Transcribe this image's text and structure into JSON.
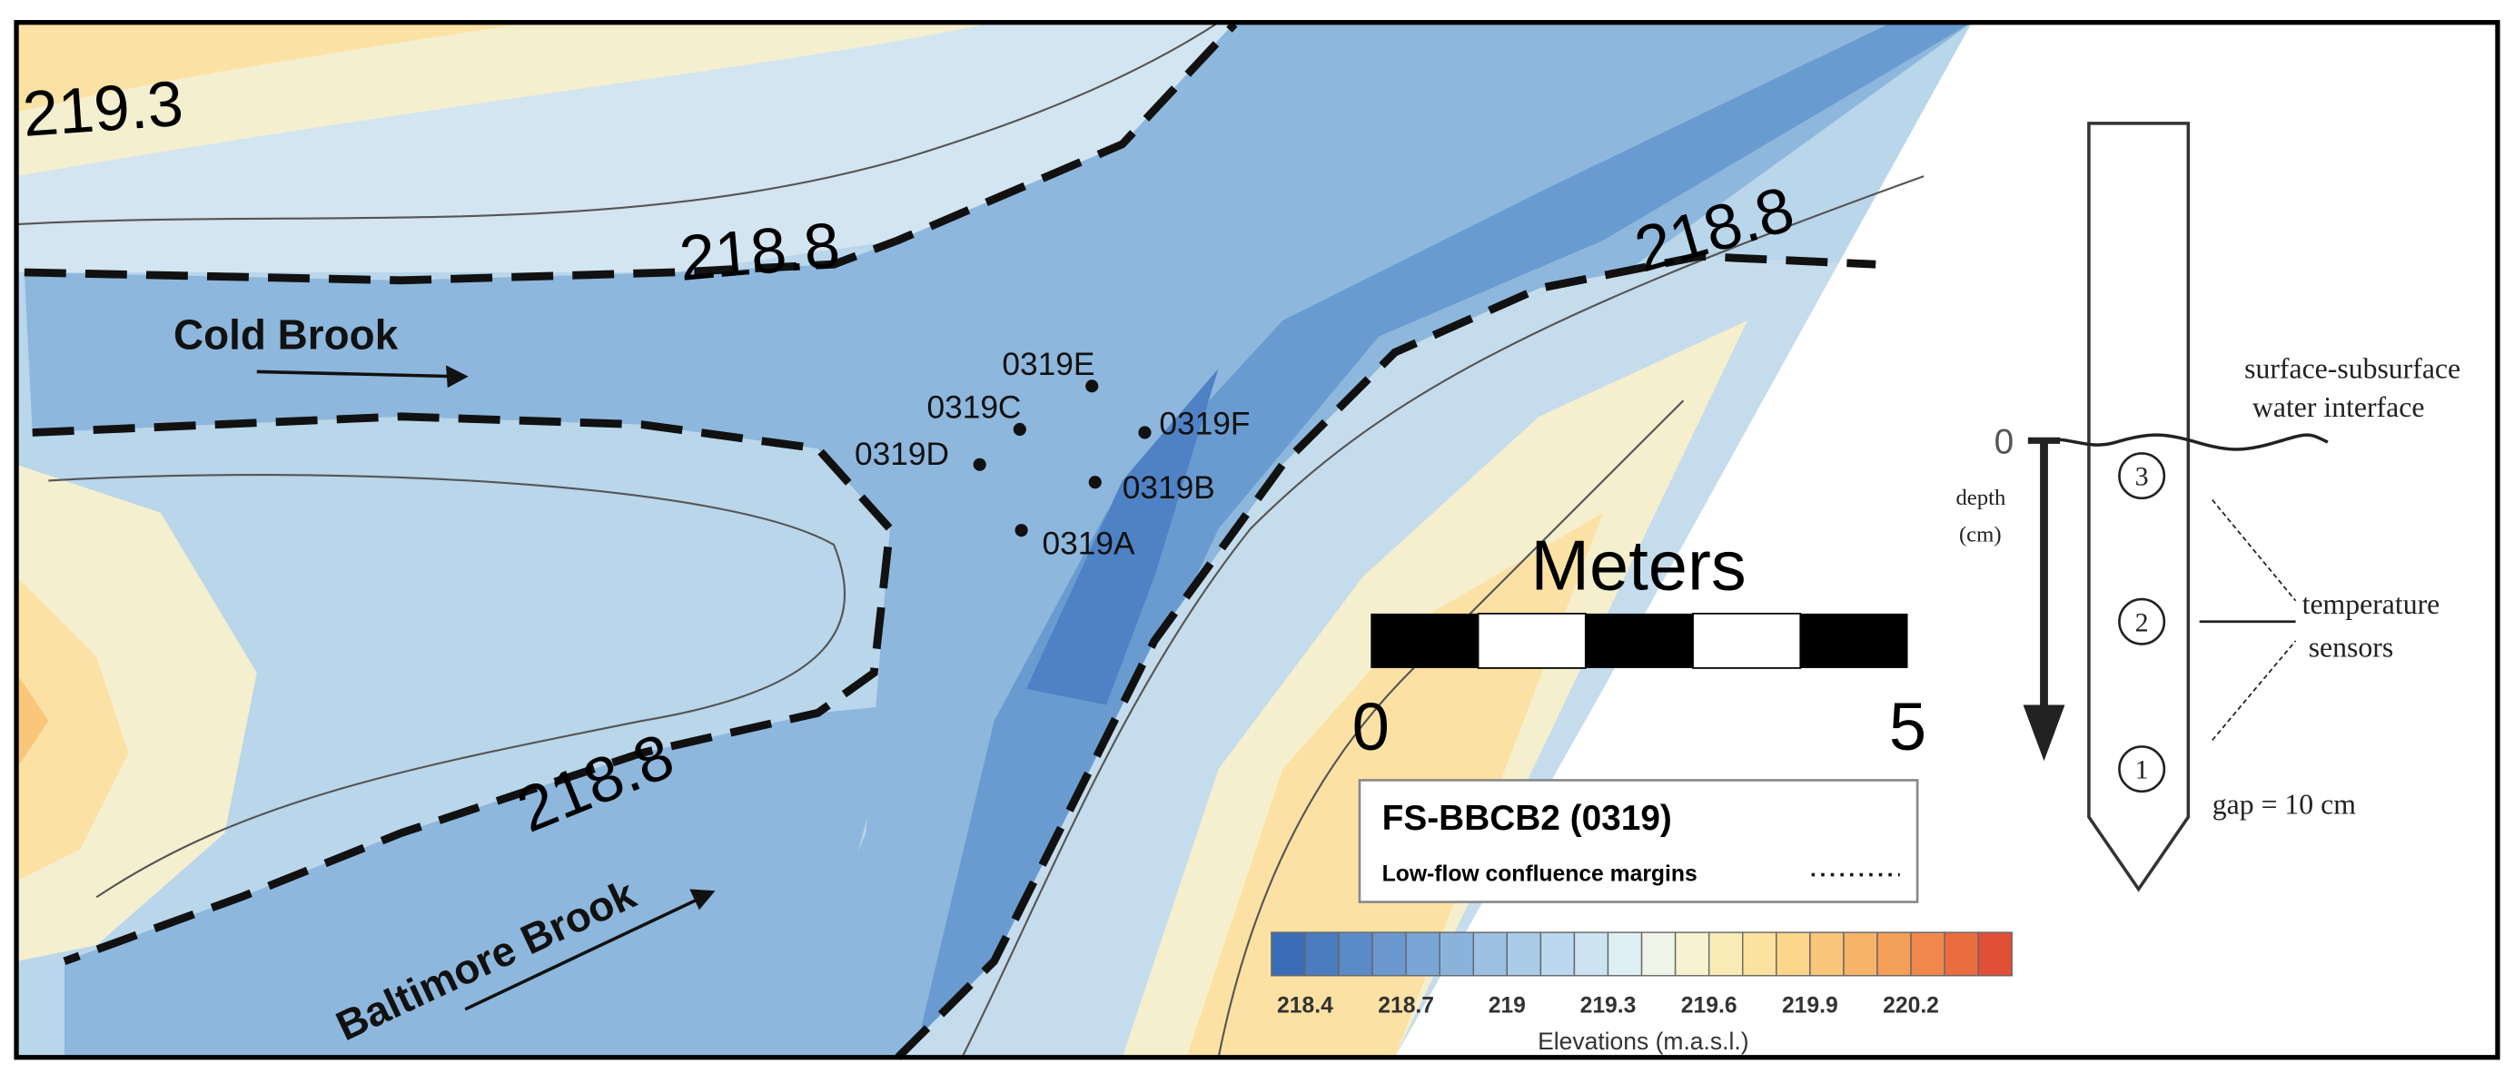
{
  "map": {
    "contour_labels": [
      219.3,
      218.8,
      218.8,
      218.8
    ],
    "streams": [
      "Cold Brook",
      "Baltimore Brook"
    ],
    "sites": [
      "0319E",
      "0319C",
      "0319F",
      "0319D",
      "0319B",
      "0319A"
    ],
    "scale_bar": {
      "title": "Meters",
      "labels": [
        0,
        5
      ]
    },
    "legend": {
      "title": "FS-BBCB2 (0319)",
      "entry": "Low-flow confluence margins"
    },
    "colorbar": {
      "colors": [
        "#3b6db6",
        "#4a7cbf",
        "#5a8ac8",
        "#6a98cf",
        "#7aa6d6",
        "#8ab3dc",
        "#9bc0e2",
        "#abcce8",
        "#bcd8ee",
        "#cde3f2",
        "#def0f4",
        "#eef5e8",
        "#f7f2cf",
        "#f9ebb6",
        "#fbe2a0",
        "#fbd68b",
        "#f9c67a",
        "#f7b469",
        "#f49f5a",
        "#f0884c",
        "#ea6d40",
        "#e24f37"
      ],
      "ticks": [
        218.4,
        218.7,
        219,
        219.3,
        219.6,
        219.9,
        220.2
      ],
      "label": "Elevations (m.a.s.l.)"
    }
  },
  "diagram": {
    "interface_label": [
      "surface-subsurface",
      "water interface"
    ],
    "zero": 0,
    "depth_label": [
      "depth",
      "(cm)"
    ],
    "sensors": [
      "3",
      "2",
      "1"
    ],
    "sensor_label": [
      "temperature",
      "sensors"
    ],
    "gap": "gap = 10 cm"
  }
}
